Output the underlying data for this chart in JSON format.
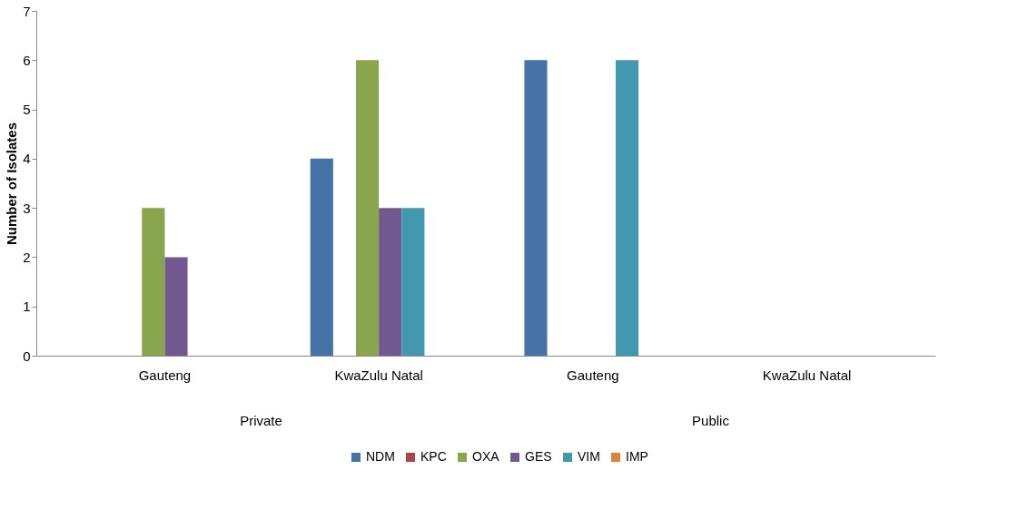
{
  "chart_data": {
    "type": "bar",
    "ylabel": "Number of Isolates",
    "categories": [
      "Gauteng",
      "KwaZulu Natal",
      "Gauteng",
      "KwaZulu Natal"
    ],
    "series": [
      {
        "name": "NDM",
        "color": "#4572a7",
        "values": [
          0,
          4,
          6,
          0
        ]
      },
      {
        "name": "KPC",
        "color": "#aa4643",
        "values": [
          0,
          0,
          0,
          0
        ]
      },
      {
        "name": "OXA",
        "color": "#89a54e",
        "values": [
          3,
          6,
          0,
          0
        ]
      },
      {
        "name": "GES",
        "color": "#71588f",
        "values": [
          2,
          3,
          0,
          0
        ]
      },
      {
        "name": "VIM",
        "color": "#4198af",
        "values": [
          0,
          3,
          6,
          0
        ]
      },
      {
        "name": "IMP",
        "color": "#db843d",
        "values": [
          0,
          0,
          0,
          0
        ]
      }
    ],
    "annotations": [
      "Private",
      "Public"
    ],
    "ylim": [
      0,
      7
    ],
    "yticks": [
      0,
      1,
      2,
      3,
      4,
      5,
      6,
      7
    ],
    "grid": false,
    "legend": "bottom"
  }
}
